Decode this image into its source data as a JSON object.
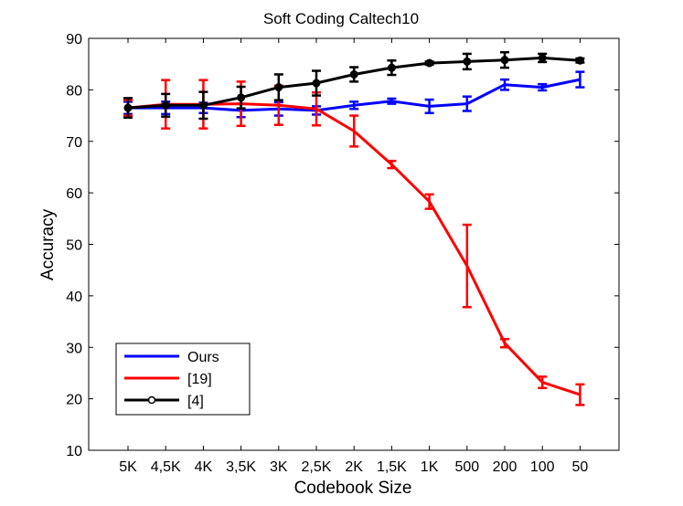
{
  "chart_data": {
    "type": "line",
    "title": "Soft Coding Caltech10",
    "xlabel": "Codebook Size",
    "ylabel": "Accuracy",
    "categories": [
      "5K",
      "4,5K",
      "4K",
      "3,5K",
      "3K",
      "2,5K",
      "2K",
      "1,5K",
      "1K",
      "500",
      "200",
      "100",
      "50"
    ],
    "ylim": [
      10,
      90
    ],
    "yticks": [
      10,
      20,
      30,
      40,
      50,
      60,
      70,
      80,
      90
    ],
    "grid": false,
    "legend_position": "bottom-left",
    "series": [
      {
        "name": "Ours",
        "color": "#0000ff",
        "marker": "none",
        "values": [
          76.5,
          76.5,
          76.5,
          76.0,
          76.3,
          76.0,
          77.0,
          77.8,
          76.8,
          77.3,
          81.0,
          80.5,
          82.0
        ],
        "errors": [
          1.2,
          1.2,
          1.0,
          1.3,
          1.3,
          0.8,
          0.7,
          0.5,
          1.3,
          1.4,
          1.0,
          0.6,
          1.5
        ]
      },
      {
        "name": "[19]",
        "color": "#ff0000",
        "marker": "none",
        "values": [
          76.5,
          77.2,
          77.2,
          77.3,
          77.0,
          76.3,
          72.0,
          65.5,
          58.3,
          45.8,
          30.8,
          23.2,
          20.8
        ],
        "errors": [
          1.5,
          4.7,
          4.7,
          4.3,
          3.8,
          3.2,
          3.0,
          0.7,
          1.4,
          8.0,
          0.8,
          1.1,
          2.0
        ]
      },
      {
        "name": "[4]",
        "color": "#000000",
        "marker": "circle",
        "values": [
          76.5,
          77.0,
          77.0,
          78.5,
          80.5,
          81.3,
          83.0,
          84.3,
          85.2,
          85.5,
          85.8,
          86.2,
          85.7
        ],
        "errors": [
          1.9,
          2.2,
          2.6,
          2.1,
          2.5,
          2.4,
          1.4,
          1.4,
          0.3,
          1.5,
          1.5,
          0.8,
          0.4
        ]
      }
    ]
  }
}
